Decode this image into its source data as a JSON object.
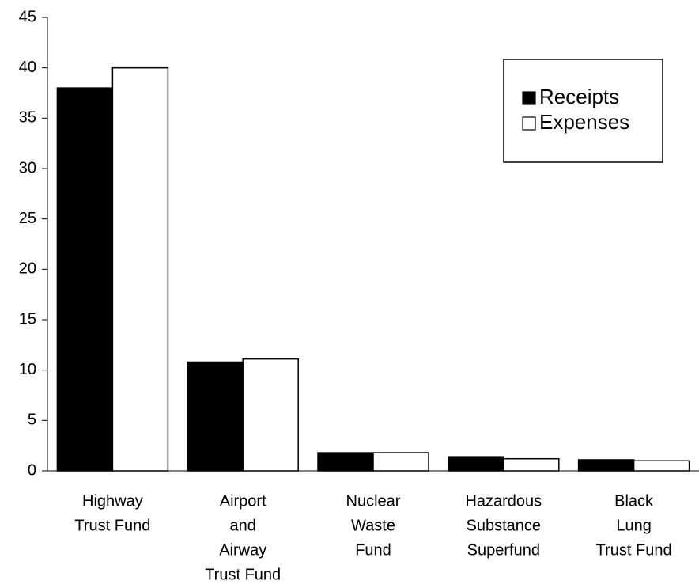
{
  "chart_data": {
    "type": "bar",
    "categories": [
      [
        "Highway",
        "Trust Fund"
      ],
      [
        "Airport",
        "and",
        "Airway",
        "Trust Fund"
      ],
      [
        "Nuclear",
        "Waste",
        "Fund"
      ],
      [
        "Hazardous",
        "Substance",
        "Superfund"
      ],
      [
        "Black",
        "Lung",
        "Trust Fund"
      ]
    ],
    "series": [
      {
        "name": "Receipts",
        "color": "#000000",
        "values": [
          38,
          10.8,
          1.8,
          1.4,
          1.1
        ]
      },
      {
        "name": "Expenses",
        "color": "#ffffff",
        "values": [
          40,
          11.1,
          1.8,
          1.2,
          1.0
        ]
      }
    ],
    "ylim": [
      0,
      45
    ],
    "yticks": [
      0,
      5,
      10,
      15,
      20,
      25,
      30,
      35,
      40,
      45
    ],
    "legend": "upper right",
    "grid": false
  }
}
